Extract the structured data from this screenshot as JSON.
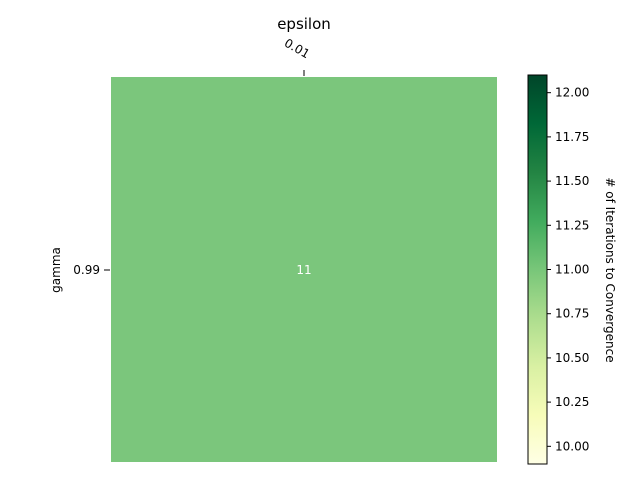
{
  "chart_data": {
    "type": "heatmap",
    "xlabel": "epsilon",
    "ylabel": "gamma",
    "x_categories": [
      "0.01"
    ],
    "y_categories": [
      "0.99"
    ],
    "values": [
      [
        11
      ]
    ],
    "cell_labels": [
      [
        "11"
      ]
    ],
    "cell_color": "#7bc67c",
    "colormap": "Greens",
    "colorbar": {
      "label": "# of Iterations to Convergence",
      "range": [
        9.9,
        12.1
      ],
      "ticks": [
        10.0,
        10.25,
        10.5,
        10.75,
        11.0,
        11.25,
        11.5,
        11.75,
        12.0
      ],
      "tick_labels": [
        "10.00",
        "10.25",
        "10.50",
        "10.75",
        "11.00",
        "11.25",
        "11.50",
        "11.75",
        "12.00"
      ],
      "low_color": "#ffffe5",
      "mid_color": "#78c679",
      "high_color": "#004529"
    }
  }
}
